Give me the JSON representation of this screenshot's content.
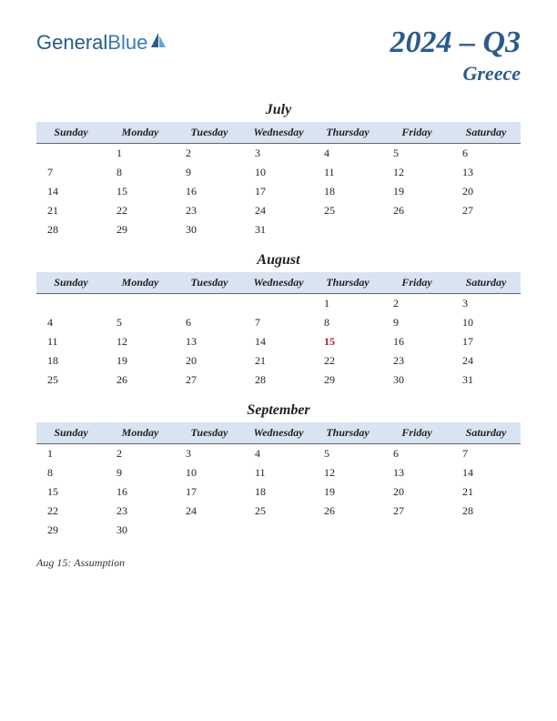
{
  "logo": {
    "part1": "General",
    "part2": "Blue"
  },
  "title": {
    "year_quarter": "2024 – Q3",
    "country": "Greece"
  },
  "day_headers": [
    "Sunday",
    "Monday",
    "Tuesday",
    "Wednesday",
    "Thursday",
    "Friday",
    "Saturday"
  ],
  "header_bg": "#d9e3f2",
  "accent_color": "#2a5b8f",
  "holiday_color": "#b02020",
  "months": [
    {
      "name": "July",
      "weeks": [
        [
          "",
          "1",
          "2",
          "3",
          "4",
          "5",
          "6"
        ],
        [
          "7",
          "8",
          "9",
          "10",
          "11",
          "12",
          "13"
        ],
        [
          "14",
          "15",
          "16",
          "17",
          "18",
          "19",
          "20"
        ],
        [
          "21",
          "22",
          "23",
          "24",
          "25",
          "26",
          "27"
        ],
        [
          "28",
          "29",
          "30",
          "31",
          "",
          "",
          ""
        ]
      ],
      "holidays": []
    },
    {
      "name": "August",
      "weeks": [
        [
          "",
          "",
          "",
          "",
          "1",
          "2",
          "3"
        ],
        [
          "4",
          "5",
          "6",
          "7",
          "8",
          "9",
          "10"
        ],
        [
          "11",
          "12",
          "13",
          "14",
          "15",
          "16",
          "17"
        ],
        [
          "18",
          "19",
          "20",
          "21",
          "22",
          "23",
          "24"
        ],
        [
          "25",
          "26",
          "27",
          "28",
          "29",
          "30",
          "31"
        ]
      ],
      "holidays": [
        "15"
      ]
    },
    {
      "name": "September",
      "weeks": [
        [
          "1",
          "2",
          "3",
          "4",
          "5",
          "6",
          "7"
        ],
        [
          "8",
          "9",
          "10",
          "11",
          "12",
          "13",
          "14"
        ],
        [
          "15",
          "16",
          "17",
          "18",
          "19",
          "20",
          "21"
        ],
        [
          "22",
          "23",
          "24",
          "25",
          "26",
          "27",
          "28"
        ],
        [
          "29",
          "30",
          "",
          "",
          "",
          "",
          ""
        ]
      ],
      "holidays": []
    }
  ],
  "holiday_list": [
    "Aug 15: Assumption"
  ]
}
